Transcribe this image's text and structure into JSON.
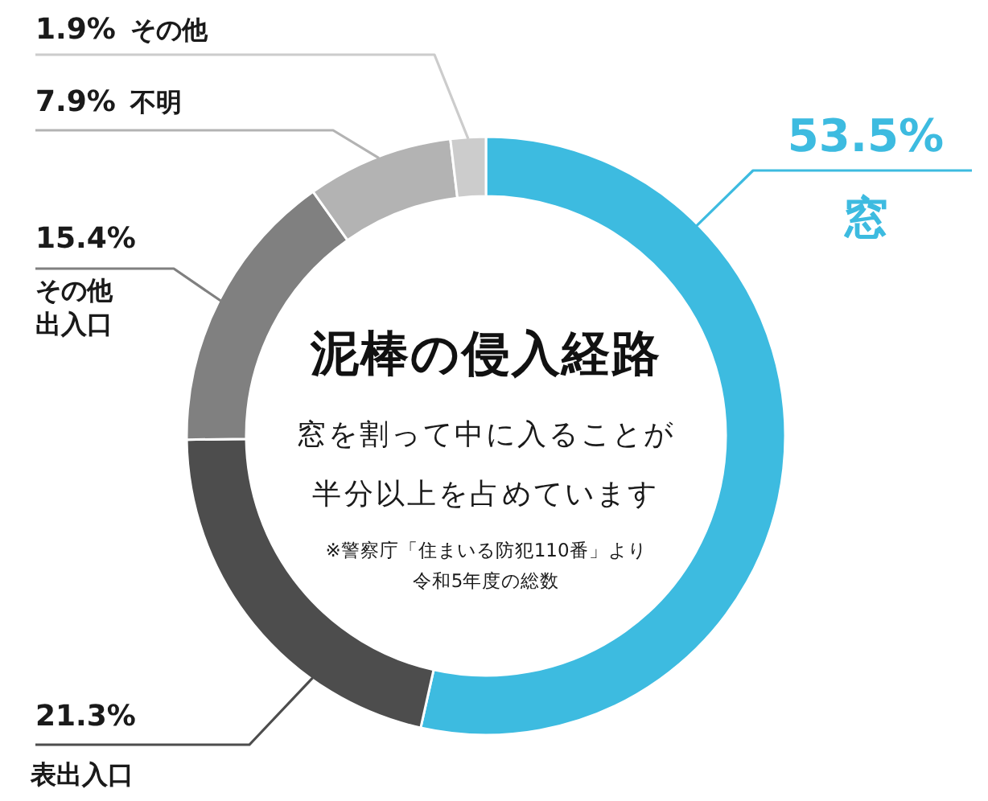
{
  "chart_data": {
    "type": "donut",
    "title": "泥棒の侵入経路",
    "subtitle": "窓を割って中に入ることが半分以上を占めています",
    "categories": [
      "窓",
      "表出入口",
      "その他出入口",
      "不明",
      "その他"
    ],
    "values": [
      53.5,
      21.3,
      15.4,
      7.9,
      1.9
    ],
    "colors": [
      "#3dbbe0",
      "#4d4d4d",
      "#808080",
      "#b3b3b3",
      "#cccccc"
    ],
    "value_labels": [
      "53.5%",
      "21.3%",
      "15.4%",
      "7.9%",
      "1.9%"
    ],
    "annotations": [
      "※警察庁「住まいる防犯110番」より令和5年度の総数"
    ]
  }
}
